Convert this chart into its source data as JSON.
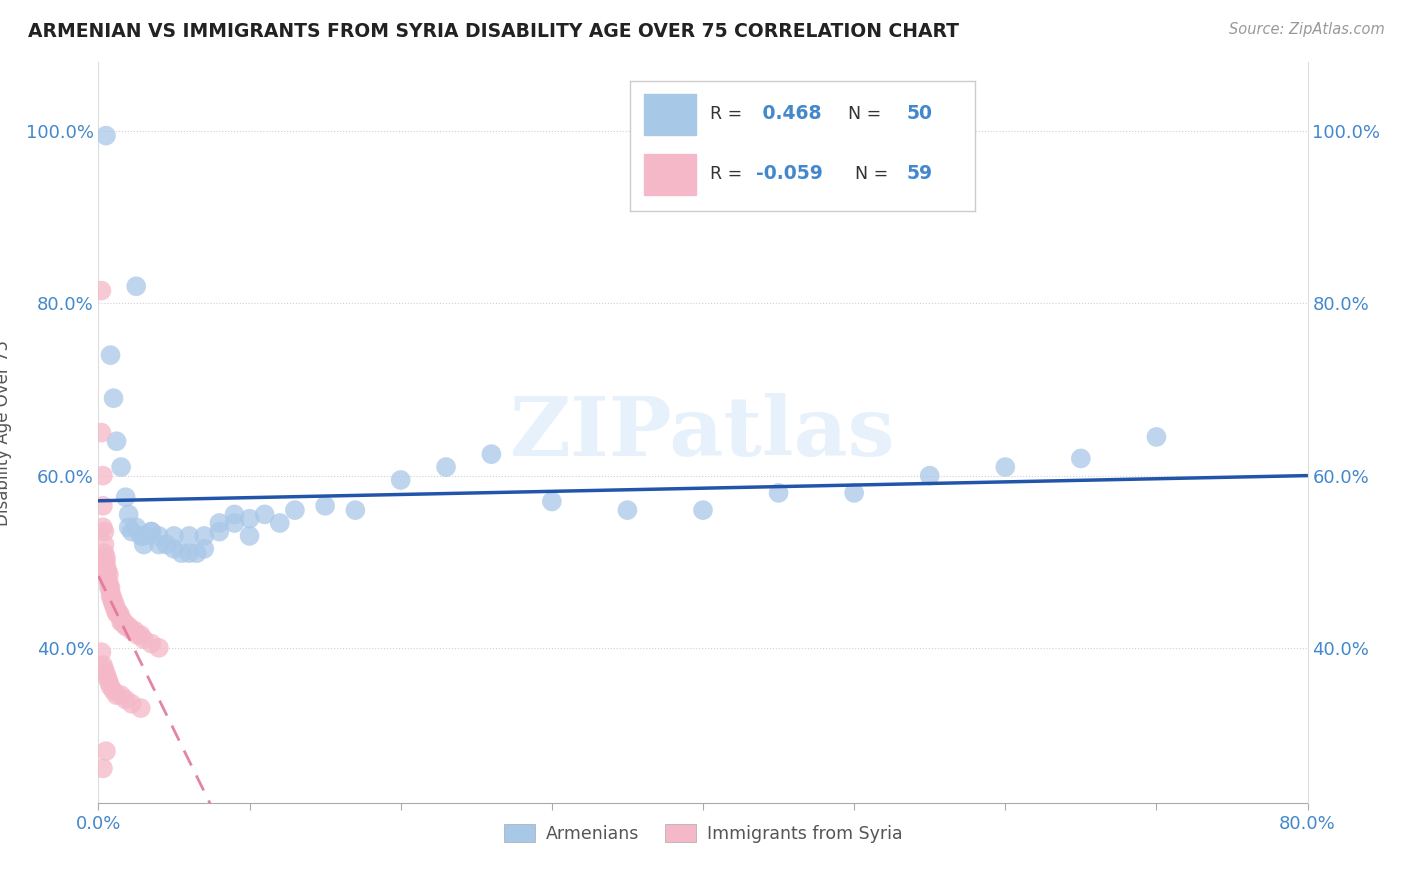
{
  "title": "ARMENIAN VS IMMIGRANTS FROM SYRIA DISABILITY AGE OVER 75 CORRELATION CHART",
  "source": "Source: ZipAtlas.com",
  "ylabel": "Disability Age Over 75",
  "xlim": [
    0.0,
    0.8
  ],
  "ylim": [
    0.22,
    1.08
  ],
  "armenian_R": 0.468,
  "armenian_N": 50,
  "syria_R": -0.059,
  "syria_N": 59,
  "armenian_color": "#a8c8e8",
  "syria_color": "#f4b8c8",
  "armenian_line_color": "#2255aa",
  "syria_line_color": "#e07898",
  "watermark": "ZIPatlas",
  "armenian_x": [
    0.005,
    0.008,
    0.01,
    0.012,
    0.015,
    0.018,
    0.02,
    0.022,
    0.025,
    0.028,
    0.03,
    0.035,
    0.04,
    0.045,
    0.05,
    0.055,
    0.06,
    0.065,
    0.07,
    0.08,
    0.09,
    0.1,
    0.11,
    0.13,
    0.15,
    0.17,
    0.2,
    0.23,
    0.26,
    0.3,
    0.35,
    0.4,
    0.45,
    0.5,
    0.55,
    0.6,
    0.65,
    0.7,
    0.02,
    0.025,
    0.03,
    0.035,
    0.04,
    0.05,
    0.06,
    0.07,
    0.08,
    0.09,
    0.1,
    0.12
  ],
  "armenian_y": [
    0.995,
    0.74,
    0.69,
    0.64,
    0.61,
    0.575,
    0.555,
    0.535,
    0.54,
    0.53,
    0.53,
    0.535,
    0.53,
    0.52,
    0.515,
    0.51,
    0.51,
    0.51,
    0.515,
    0.535,
    0.545,
    0.55,
    0.555,
    0.56,
    0.565,
    0.56,
    0.595,
    0.61,
    0.625,
    0.57,
    0.56,
    0.56,
    0.58,
    0.58,
    0.6,
    0.61,
    0.62,
    0.645,
    0.54,
    0.82,
    0.52,
    0.535,
    0.52,
    0.53,
    0.53,
    0.53,
    0.545,
    0.555,
    0.53,
    0.545
  ],
  "syria_x": [
    0.002,
    0.002,
    0.003,
    0.003,
    0.003,
    0.004,
    0.004,
    0.004,
    0.005,
    0.005,
    0.005,
    0.005,
    0.006,
    0.006,
    0.007,
    0.007,
    0.007,
    0.008,
    0.008,
    0.008,
    0.009,
    0.009,
    0.01,
    0.01,
    0.011,
    0.011,
    0.012,
    0.012,
    0.013,
    0.014,
    0.015,
    0.015,
    0.016,
    0.017,
    0.018,
    0.019,
    0.02,
    0.022,
    0.024,
    0.026,
    0.028,
    0.03,
    0.035,
    0.04,
    0.002,
    0.003,
    0.004,
    0.005,
    0.006,
    0.007,
    0.008,
    0.01,
    0.012,
    0.015,
    0.018,
    0.022,
    0.028,
    0.005,
    0.003
  ],
  "syria_y": [
    0.815,
    0.65,
    0.6,
    0.565,
    0.54,
    0.535,
    0.52,
    0.51,
    0.505,
    0.5,
    0.495,
    0.49,
    0.49,
    0.48,
    0.485,
    0.475,
    0.47,
    0.47,
    0.465,
    0.46,
    0.46,
    0.455,
    0.455,
    0.45,
    0.45,
    0.445,
    0.445,
    0.44,
    0.44,
    0.44,
    0.435,
    0.43,
    0.43,
    0.43,
    0.425,
    0.425,
    0.425,
    0.42,
    0.42,
    0.415,
    0.415,
    0.41,
    0.405,
    0.4,
    0.395,
    0.38,
    0.375,
    0.37,
    0.365,
    0.36,
    0.355,
    0.35,
    0.345,
    0.345,
    0.34,
    0.335,
    0.33,
    0.28,
    0.26
  ]
}
